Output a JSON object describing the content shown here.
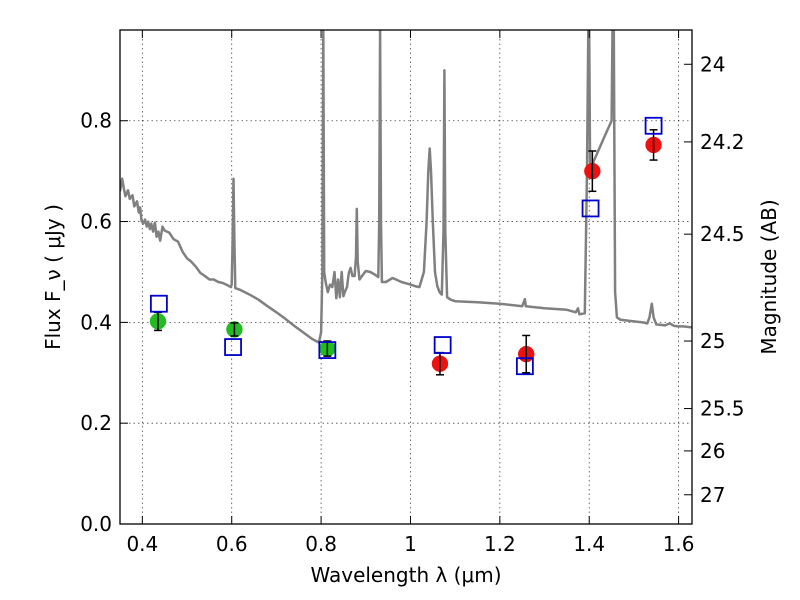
{
  "chart_data": {
    "type": "scatter",
    "xlabel": "Wavelength  λ (μm)",
    "ylabel": "Flux  F_ν  ( μJy )",
    "ylabel_right": "Magnitude (AB)",
    "xlim": [
      0.35,
      1.63
    ],
    "ylim": [
      0.0,
      0.98
    ],
    "grid": true,
    "x_ticks": [
      0.4,
      0.6,
      0.8,
      1.0,
      1.2,
      1.4,
      1.6
    ],
    "x_tick_labels": [
      "0.4",
      "0.6",
      "0.8",
      "1",
      "1.2",
      "1.4",
      "1.6"
    ],
    "y_ticks": [
      0.0,
      0.2,
      0.4,
      0.6,
      0.8
    ],
    "y_tick_labels": [
      "0.0",
      "0.2",
      "0.4",
      "0.6",
      "0.8"
    ],
    "right_ticks": [
      {
        "label": "24",
        "flux": 0.912
      },
      {
        "label": "24.2",
        "flux": 0.758
      },
      {
        "label": "24.5",
        "flux": 0.575
      },
      {
        "label": "25",
        "flux": 0.363
      },
      {
        "label": "25.5",
        "flux": 0.229
      },
      {
        "label": "26",
        "flux": 0.145
      },
      {
        "label": "27",
        "flux": 0.058
      }
    ],
    "series": [
      {
        "marker": "circle",
        "color": "#22bb22",
        "points": [
          {
            "x": 0.435,
            "y": 0.402,
            "err": 0.018
          },
          {
            "x": 0.606,
            "y": 0.386,
            "err": 0.013
          },
          {
            "x": 0.814,
            "y": 0.348,
            "err": 0.015
          }
        ]
      },
      {
        "marker": "circle",
        "color": "#ee1111",
        "points": [
          {
            "x": 1.066,
            "y": 0.318,
            "err": 0.022
          },
          {
            "x": 1.259,
            "y": 0.337,
            "err": 0.037
          },
          {
            "x": 1.407,
            "y": 0.7,
            "err": 0.04
          },
          {
            "x": 1.544,
            "y": 0.752,
            "err": 0.03
          }
        ]
      },
      {
        "marker": "open-square",
        "color": "#0000cc",
        "points": [
          {
            "x": 0.437,
            "y": 0.437
          },
          {
            "x": 0.603,
            "y": 0.351
          },
          {
            "x": 0.814,
            "y": 0.345
          },
          {
            "x": 1.072,
            "y": 0.355
          },
          {
            "x": 1.256,
            "y": 0.313
          },
          {
            "x": 1.403,
            "y": 0.626
          },
          {
            "x": 1.544,
            "y": 0.79
          }
        ]
      }
    ],
    "spectrum": {
      "color": "#808080",
      "points": [
        [
          0.35,
          0.66
        ],
        [
          0.355,
          0.685
        ],
        [
          0.358,
          0.668
        ],
        [
          0.362,
          0.65
        ],
        [
          0.368,
          0.662
        ],
        [
          0.372,
          0.645
        ],
        [
          0.378,
          0.652
        ],
        [
          0.382,
          0.63
        ],
        [
          0.388,
          0.64
        ],
        [
          0.392,
          0.618
        ],
        [
          0.395,
          0.628
        ],
        [
          0.398,
          0.602
        ],
        [
          0.402,
          0.596
        ],
        [
          0.406,
          0.604
        ],
        [
          0.41,
          0.59
        ],
        [
          0.413,
          0.6
        ],
        [
          0.417,
          0.585
        ],
        [
          0.42,
          0.596
        ],
        [
          0.424,
          0.58
        ],
        [
          0.428,
          0.598
        ],
        [
          0.432,
          0.57
        ],
        [
          0.436,
          0.58
        ],
        [
          0.44,
          0.562
        ],
        [
          0.445,
          0.59
        ],
        [
          0.45,
          0.582
        ],
        [
          0.46,
          0.578
        ],
        [
          0.47,
          0.565
        ],
        [
          0.48,
          0.56
        ],
        [
          0.49,
          0.54
        ],
        [
          0.5,
          0.527
        ],
        [
          0.51,
          0.52
        ],
        [
          0.52,
          0.51
        ],
        [
          0.53,
          0.498
        ],
        [
          0.54,
          0.492
        ],
        [
          0.55,
          0.485
        ],
        [
          0.56,
          0.485
        ],
        [
          0.57,
          0.48
        ],
        [
          0.58,
          0.478
        ],
        [
          0.59,
          0.474
        ],
        [
          0.598,
          0.47
        ],
        [
          0.6,
          0.475
        ],
        [
          0.602,
          0.56
        ],
        [
          0.604,
          0.685
        ],
        [
          0.606,
          0.56
        ],
        [
          0.608,
          0.468
        ],
        [
          0.62,
          0.464
        ],
        [
          0.64,
          0.455
        ],
        [
          0.66,
          0.445
        ],
        [
          0.68,
          0.432
        ],
        [
          0.7,
          0.42
        ],
        [
          0.72,
          0.407
        ],
        [
          0.74,
          0.393
        ],
        [
          0.76,
          0.38
        ],
        [
          0.78,
          0.367
        ],
        [
          0.795,
          0.36
        ],
        [
          0.8,
          0.38
        ],
        [
          0.803,
          0.5
        ],
        [
          0.805,
          0.98
        ],
        [
          0.807,
          0.5
        ],
        [
          0.81,
          0.48
        ],
        [
          0.815,
          0.46
        ],
        [
          0.82,
          0.475
        ],
        [
          0.825,
          0.47
        ],
        [
          0.83,
          0.5
        ],
        [
          0.834,
          0.448
        ],
        [
          0.838,
          0.485
        ],
        [
          0.842,
          0.45
        ],
        [
          0.846,
          0.5
        ],
        [
          0.85,
          0.452
        ],
        [
          0.854,
          0.462
        ],
        [
          0.858,
          0.47
        ],
        [
          0.862,
          0.498
        ],
        [
          0.866,
          0.508
        ],
        [
          0.87,
          0.492
        ],
        [
          0.875,
          0.492
        ],
        [
          0.878,
          0.53
        ],
        [
          0.88,
          0.625
        ],
        [
          0.882,
          0.52
        ],
        [
          0.886,
          0.485
        ],
        [
          0.89,
          0.49
        ],
        [
          0.9,
          0.502
        ],
        [
          0.91,
          0.5
        ],
        [
          0.92,
          0.495
        ],
        [
          0.928,
          0.49
        ],
        [
          0.93,
          0.6
        ],
        [
          0.932,
          0.98
        ],
        [
          0.934,
          0.6
        ],
        [
          0.936,
          0.48
        ],
        [
          0.945,
          0.48
        ],
        [
          0.96,
          0.488
        ],
        [
          0.98,
          0.48
        ],
        [
          1.0,
          0.475
        ],
        [
          1.01,
          0.472
        ],
        [
          1.02,
          0.47
        ],
        [
          1.03,
          0.5
        ],
        [
          1.036,
          0.6
        ],
        [
          1.04,
          0.7
        ],
        [
          1.043,
          0.745
        ],
        [
          1.046,
          0.7
        ],
        [
          1.05,
          0.6
        ],
        [
          1.055,
          0.5
        ],
        [
          1.06,
          0.472
        ],
        [
          1.065,
          0.46
        ],
        [
          1.07,
          0.455
        ],
        [
          1.074,
          0.58
        ],
        [
          1.076,
          0.9
        ],
        [
          1.078,
          0.58
        ],
        [
          1.082,
          0.45
        ],
        [
          1.09,
          0.445
        ],
        [
          1.1,
          0.442
        ],
        [
          1.15,
          0.44
        ],
        [
          1.2,
          0.437
        ],
        [
          1.25,
          0.432
        ],
        [
          1.256,
          0.446
        ],
        [
          1.258,
          0.432
        ],
        [
          1.3,
          0.428
        ],
        [
          1.35,
          0.425
        ],
        [
          1.37,
          0.42
        ],
        [
          1.375,
          0.428
        ],
        [
          1.378,
          0.416
        ],
        [
          1.39,
          0.418
        ],
        [
          1.395,
          0.7
        ],
        [
          1.398,
          0.98
        ],
        [
          1.4,
          0.98
        ],
        [
          1.402,
          0.7
        ],
        [
          1.405,
          0.7
        ],
        [
          1.41,
          0.72
        ],
        [
          1.42,
          0.74
        ],
        [
          1.43,
          0.76
        ],
        [
          1.44,
          0.78
        ],
        [
          1.45,
          0.8
        ],
        [
          1.452,
          0.98
        ],
        [
          1.455,
          0.98
        ],
        [
          1.458,
          0.46
        ],
        [
          1.462,
          0.41
        ],
        [
          1.47,
          0.405
        ],
        [
          1.5,
          0.402
        ],
        [
          1.52,
          0.4
        ],
        [
          1.53,
          0.398
        ],
        [
          1.535,
          0.41
        ],
        [
          1.54,
          0.437
        ],
        [
          1.544,
          0.41
        ],
        [
          1.55,
          0.396
        ],
        [
          1.57,
          0.394
        ],
        [
          1.58,
          0.398
        ],
        [
          1.59,
          0.393
        ],
        [
          1.6,
          0.392
        ],
        [
          1.61,
          0.392
        ],
        [
          1.63,
          0.39
        ]
      ]
    }
  }
}
